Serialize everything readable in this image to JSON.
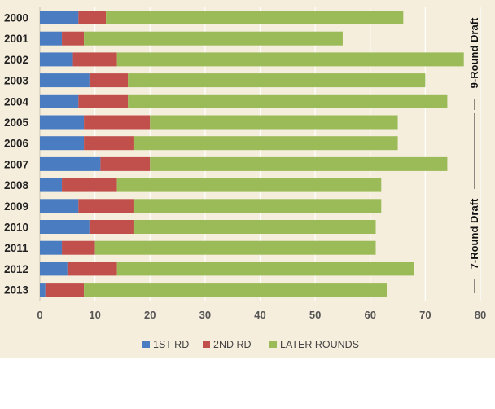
{
  "chart_data": {
    "type": "bar",
    "orientation": "horizontal",
    "stacked": true,
    "categories": [
      "2000",
      "2001",
      "2002",
      "2003",
      "2004",
      "2005",
      "2006",
      "2007",
      "2008",
      "2009",
      "2010",
      "2011",
      "2012",
      "2013"
    ],
    "series": [
      {
        "name": "1ST RD",
        "color": "#4a7cc1",
        "values": [
          7,
          4,
          6,
          9,
          7,
          8,
          8,
          11,
          4,
          7,
          9,
          4,
          5,
          1
        ]
      },
      {
        "name": "2ND RD",
        "color": "#c1504d",
        "values": [
          5,
          4,
          8,
          7,
          9,
          12,
          9,
          9,
          10,
          10,
          8,
          6,
          9,
          7
        ]
      },
      {
        "name": "LATER ROUNDS",
        "color": "#9bbb58",
        "values": [
          54,
          47,
          63,
          54,
          58,
          45,
          48,
          54,
          48,
          45,
          44,
          51,
          54,
          55
        ]
      }
    ],
    "xlim": [
      0,
      80
    ],
    "xticks": [
      0,
      10,
      20,
      30,
      40,
      50,
      60,
      70,
      80
    ],
    "grid": true,
    "legend_position": "bottom",
    "annotations": [
      "9-Round Draft",
      "7-Round Draft"
    ]
  }
}
